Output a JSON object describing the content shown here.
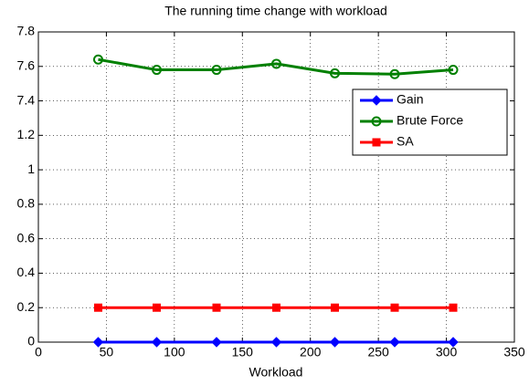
{
  "chart_data": {
    "type": "line",
    "title": "The running time change with workload",
    "x_label": "Workload",
    "x": [
      44,
      87,
      131,
      175,
      218,
      262,
      305
    ],
    "series": [
      {
        "name": "Gain",
        "color": "#0000ff",
        "marker": "diamond",
        "values": [
          0,
          0,
          0,
          0,
          0,
          0,
          0
        ]
      },
      {
        "name": "Brute Force",
        "color": "#008000",
        "marker": "circle",
        "values": [
          7.64,
          7.58,
          7.58,
          7.615,
          7.56,
          7.555,
          7.58
        ]
      },
      {
        "name": "SA",
        "color": "#ff0000",
        "marker": "square",
        "values": [
          0.2,
          0.2,
          0.2,
          0.2,
          0.2,
          0.2,
          0.2
        ]
      }
    ],
    "xlim": [
      0,
      350
    ],
    "xticks": [
      0,
      50,
      100,
      150,
      200,
      250,
      300,
      350
    ],
    "ylim": [
      0,
      7.8
    ],
    "yticks": [
      0,
      0.2,
      0.4,
      0.6,
      0.8,
      1,
      1.2,
      7.4,
      7.6,
      7.8
    ],
    "grid": true,
    "legend": "upper right"
  }
}
